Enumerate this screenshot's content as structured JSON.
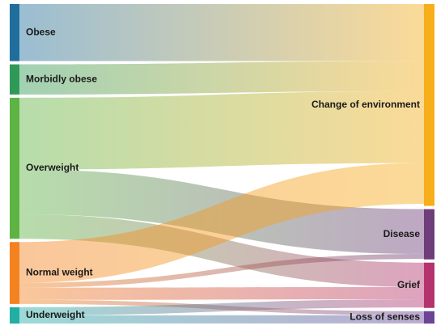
{
  "chart_data": {
    "type": "sankey",
    "title": "",
    "sources": [
      {
        "id": "obese",
        "label": "Obese",
        "color": "#1F6E9C"
      },
      {
        "id": "morbidly_obese",
        "label": "Morbidly obese",
        "color": "#2F9A57"
      },
      {
        "id": "overweight",
        "label": "Overweight",
        "color": "#5DB443"
      },
      {
        "id": "normal_weight",
        "label": "Normal weight",
        "color": "#F4821F"
      },
      {
        "id": "underweight",
        "label": "Underweight",
        "color": "#22ADA5"
      }
    ],
    "targets": [
      {
        "id": "change_of_environment",
        "label": "Change of environment",
        "color": "#F6AE1A"
      },
      {
        "id": "disease",
        "label": "Disease",
        "color": "#6E3D7A"
      },
      {
        "id": "grief",
        "label": "Grief",
        "color": "#B4336E"
      },
      {
        "id": "loss_of_senses",
        "label": "Loss of senses",
        "color": "#6B4496"
      }
    ],
    "links": [
      {
        "source": "obese",
        "target": "change_of_environment",
        "value": 70
      },
      {
        "source": "morbidly_obese",
        "target": "change_of_environment",
        "value": 37
      },
      {
        "source": "overweight",
        "target": "change_of_environment",
        "value": 88
      },
      {
        "source": "overweight",
        "target": "disease",
        "value": 55
      },
      {
        "source": "overweight",
        "target": "grief",
        "value": 30
      },
      {
        "source": "normal_weight",
        "target": "change_of_environment",
        "value": 50
      },
      {
        "source": "normal_weight",
        "target": "disease",
        "value": 6
      },
      {
        "source": "normal_weight",
        "target": "grief",
        "value": 15
      },
      {
        "source": "normal_weight",
        "target": "loss_of_senses",
        "value": 5
      },
      {
        "source": "underweight",
        "target": "grief",
        "value": 10
      },
      {
        "source": "underweight",
        "target": "loss_of_senses",
        "value": 10
      }
    ]
  }
}
